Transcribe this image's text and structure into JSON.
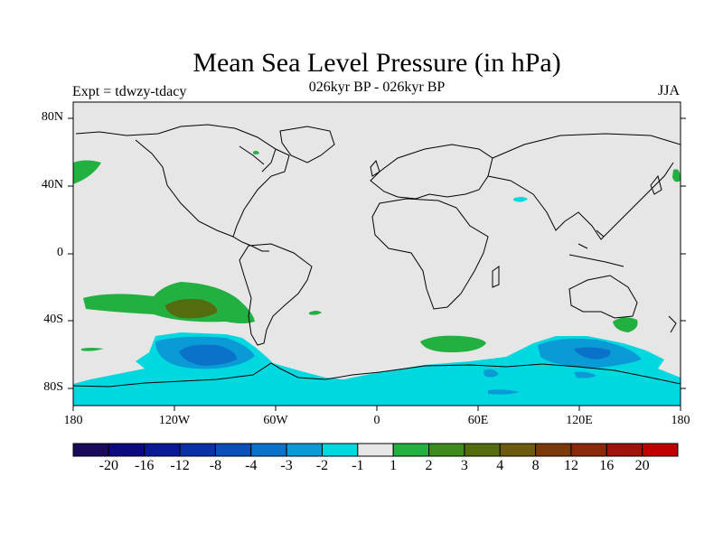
{
  "title": "Mean Sea Level Pressure (in hPa)",
  "left_string": "Expt = tdwzy-tdacy",
  "center_string": "026kyr BP - 026kyr BP",
  "right_string": "JJA",
  "lat_labels": [
    "80N",
    "40N",
    "0",
    "40S",
    "80S"
  ],
  "lon_labels": [
    "180",
    "120W",
    "60W",
    "0",
    "60E",
    "120E",
    "180"
  ],
  "colorbar": {
    "colors": [
      "#1a0a5a",
      "#0d0a80",
      "#0a1a96",
      "#0a32a6",
      "#0a4fb8",
      "#0a72c8",
      "#0a9ad6",
      "#00d8e0",
      "#e6e6e6",
      "#22b040",
      "#3e8a1e",
      "#556b10",
      "#6b5a10",
      "#7a3a0a",
      "#8a2a0a",
      "#9e140a",
      "#c00000"
    ],
    "labels": [
      "-20",
      "-16",
      "-12",
      "-8",
      "-4",
      "-3",
      "-2",
      "-1",
      "1",
      "2",
      "3",
      "4",
      "8",
      "12",
      "16",
      "20"
    ]
  },
  "colors": {
    "background": "#e6e6e6",
    "land_line": "#000000",
    "cyan": "#00d8e0",
    "light_blue": "#0a9ad6",
    "mid_blue": "#0a72c8",
    "green": "#22b040",
    "dark_green": "#556b10"
  }
}
